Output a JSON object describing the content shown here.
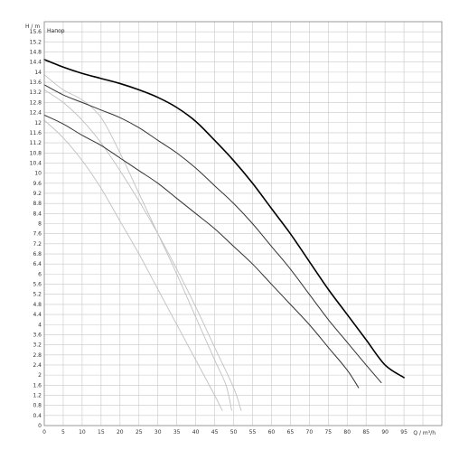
{
  "chart_data": {
    "type": "line",
    "title": "Напор",
    "ylabel": "H / m",
    "xlabel": "Q / m³/h",
    "xlim": [
      0,
      105
    ],
    "ylim": [
      0,
      16
    ],
    "x_ticks": [
      0,
      5,
      10,
      15,
      20,
      25,
      30,
      35,
      40,
      45,
      50,
      55,
      60,
      65,
      70,
      75,
      80,
      85,
      90,
      95
    ],
    "y_ticks": [
      0,
      0.4,
      0.8,
      1.2,
      1.6,
      2,
      2.4,
      2.8,
      3.2,
      3.6,
      4,
      4.4,
      4.8,
      5.2,
      5.6,
      6,
      6.4,
      6.8,
      7.2,
      7.6,
      8,
      8.4,
      8.8,
      9.2,
      9.6,
      10,
      10.4,
      10.8,
      11.2,
      11.6,
      12,
      12.4,
      12.8,
      13.2,
      13.6,
      14,
      14.4,
      14.8,
      15.2,
      15.6
    ],
    "grid": true,
    "colors": {
      "curve_main": "#000000",
      "curve_mid": "#333333",
      "curve_low": "#333333",
      "curve_light": "#c0c0c0",
      "grid": "#c8c8c8",
      "axis": "#888888"
    },
    "series": [
      {
        "style": "main",
        "points": [
          [
            0,
            14.5
          ],
          [
            5,
            14.2
          ],
          [
            10,
            13.95
          ],
          [
            15,
            13.75
          ],
          [
            20,
            13.55
          ],
          [
            25,
            13.3
          ],
          [
            30,
            13.0
          ],
          [
            35,
            12.6
          ],
          [
            40,
            12.05
          ],
          [
            45,
            11.3
          ],
          [
            50,
            10.5
          ],
          [
            55,
            9.6
          ],
          [
            60,
            8.6
          ],
          [
            65,
            7.6
          ],
          [
            70,
            6.5
          ],
          [
            75,
            5.4
          ],
          [
            80,
            4.4
          ],
          [
            85,
            3.4
          ],
          [
            90,
            2.4
          ],
          [
            95,
            1.9
          ]
        ]
      },
      {
        "style": "mid",
        "points": [
          [
            0,
            13.5
          ],
          [
            5,
            13.1
          ],
          [
            10,
            12.8
          ],
          [
            15,
            12.5
          ],
          [
            20,
            12.2
          ],
          [
            25,
            11.8
          ],
          [
            30,
            11.3
          ],
          [
            35,
            10.8
          ],
          [
            40,
            10.2
          ],
          [
            45,
            9.5
          ],
          [
            50,
            8.8
          ],
          [
            55,
            8.0
          ],
          [
            60,
            7.1
          ],
          [
            65,
            6.2
          ],
          [
            70,
            5.2
          ],
          [
            75,
            4.2
          ],
          [
            80,
            3.3
          ],
          [
            85,
            2.4
          ],
          [
            89,
            1.7
          ]
        ]
      },
      {
        "style": "low",
        "points": [
          [
            0,
            12.3
          ],
          [
            5,
            11.95
          ],
          [
            10,
            11.5
          ],
          [
            15,
            11.1
          ],
          [
            20,
            10.6
          ],
          [
            25,
            10.1
          ],
          [
            30,
            9.6
          ],
          [
            35,
            9.0
          ],
          [
            40,
            8.4
          ],
          [
            45,
            7.8
          ],
          [
            50,
            7.1
          ],
          [
            55,
            6.4
          ],
          [
            60,
            5.6
          ],
          [
            65,
            4.8
          ],
          [
            70,
            4.0
          ],
          [
            75,
            3.1
          ],
          [
            80,
            2.2
          ],
          [
            83,
            1.5
          ]
        ]
      },
      {
        "style": "light",
        "points": [
          [
            0,
            12.1
          ],
          [
            5,
            11.4
          ],
          [
            10,
            10.5
          ],
          [
            15,
            9.4
          ],
          [
            20,
            8.1
          ],
          [
            25,
            6.8
          ],
          [
            30,
            5.4
          ],
          [
            35,
            4.0
          ],
          [
            40,
            2.6
          ],
          [
            45,
            1.2
          ],
          [
            47,
            0.6
          ]
        ]
      },
      {
        "style": "light",
        "points": [
          [
            0,
            13.3
          ],
          [
            5,
            12.8
          ],
          [
            10,
            12.1
          ],
          [
            15,
            11.2
          ],
          [
            20,
            10.1
          ],
          [
            25,
            8.9
          ],
          [
            30,
            7.6
          ],
          [
            35,
            6.2
          ],
          [
            40,
            4.7
          ],
          [
            45,
            3.1
          ],
          [
            50,
            1.5
          ],
          [
            52,
            0.6
          ]
        ]
      },
      {
        "style": "light",
        "points": [
          [
            0,
            13.9
          ],
          [
            5,
            13.3
          ],
          [
            10,
            12.9
          ],
          [
            15,
            12.2
          ],
          [
            20,
            10.8
          ],
          [
            25,
            9.2
          ],
          [
            30,
            7.6
          ],
          [
            35,
            6.0
          ],
          [
            40,
            4.3
          ],
          [
            45,
            2.6
          ],
          [
            48,
            1.6
          ],
          [
            49.5,
            0.6
          ]
        ]
      }
    ]
  }
}
